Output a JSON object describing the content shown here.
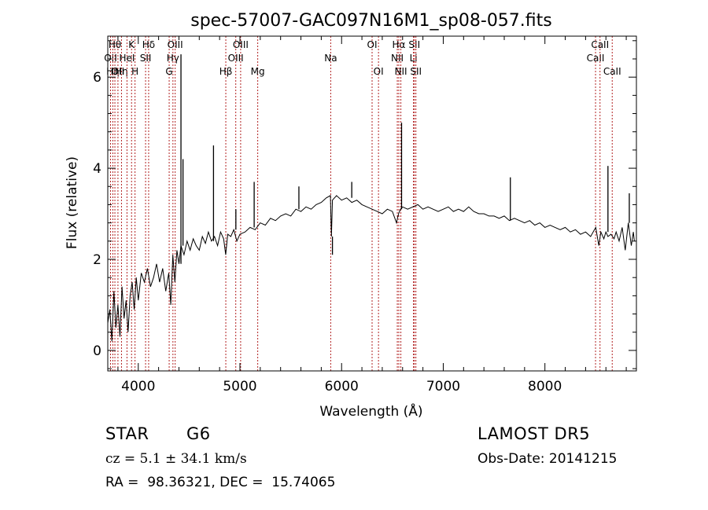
{
  "chart_data": {
    "type": "line",
    "title": "spec-57007-GAC097N16M1_sp08-057.fits",
    "xlabel": "Wavelength (Å)",
    "ylabel": "Flux (relative)",
    "xlim": [
      3700,
      8900
    ],
    "ylim": [
      -0.45,
      6.9
    ],
    "xticks": [
      4000,
      5000,
      6000,
      7000,
      8000
    ],
    "yticks": [
      0,
      2,
      4,
      6
    ],
    "grid": false,
    "series": [
      {
        "x": [
          3700,
          3720,
          3740,
          3760,
          3780,
          3800,
          3820,
          3840,
          3860,
          3880,
          3900,
          3920,
          3940,
          3960,
          3980,
          4000,
          4030,
          4060,
          4090,
          4120,
          4150,
          4180,
          4210,
          4240,
          4270,
          4300,
          4320,
          4340,
          4360,
          4380,
          4400,
          4420,
          4450,
          4480,
          4510,
          4540,
          4570,
          4600,
          4630,
          4660,
          4690,
          4720,
          4750,
          4780,
          4810,
          4840,
          4860,
          4880,
          4910,
          4940,
          4970,
          5000,
          5050,
          5100,
          5150,
          5200,
          5250,
          5300,
          5350,
          5400,
          5450,
          5500,
          5550,
          5600,
          5650,
          5700,
          5750,
          5800,
          5850,
          5890,
          5900,
          5910,
          5950,
          6000,
          6050,
          6100,
          6150,
          6200,
          6250,
          6300,
          6350,
          6400,
          6450,
          6500,
          6540,
          6560,
          6580,
          6600,
          6650,
          6700,
          6750,
          6800,
          6850,
          6900,
          6950,
          7000,
          7050,
          7100,
          7150,
          7200,
          7250,
          7300,
          7350,
          7400,
          7450,
          7500,
          7550,
          7600,
          7650,
          7700,
          7750,
          7800,
          7850,
          7900,
          7950,
          8000,
          8050,
          8100,
          8150,
          8200,
          8250,
          8300,
          8350,
          8400,
          8450,
          8500,
          8530,
          8550,
          8580,
          8600,
          8620,
          8650,
          8680,
          8700,
          8730,
          8760,
          8790,
          8820,
          8850,
          8870,
          8880
        ],
        "y": [
          0.6,
          0.9,
          0.2,
          1.3,
          0.5,
          1.0,
          0.3,
          1.4,
          0.7,
          1.1,
          0.4,
          1.2,
          1.5,
          0.9,
          1.6,
          1.1,
          1.7,
          1.5,
          1.8,
          1.4,
          1.6,
          1.9,
          1.5,
          1.8,
          1.3,
          1.7,
          1.0,
          2.1,
          1.5,
          2.2,
          1.9,
          2.3,
          2.1,
          2.4,
          2.2,
          2.45,
          2.3,
          2.2,
          2.5,
          2.35,
          2.6,
          2.4,
          2.5,
          2.3,
          2.6,
          2.45,
          2.1,
          2.55,
          2.5,
          2.65,
          2.4,
          2.55,
          2.6,
          2.7,
          2.65,
          2.8,
          2.75,
          2.9,
          2.85,
          2.95,
          3.0,
          2.95,
          3.1,
          3.05,
          3.15,
          3.1,
          3.2,
          3.25,
          3.35,
          3.4,
          2.5,
          3.3,
          3.4,
          3.3,
          3.35,
          3.25,
          3.3,
          3.2,
          3.15,
          3.1,
          3.05,
          3.0,
          3.1,
          3.05,
          2.8,
          3.0,
          3.1,
          3.15,
          3.1,
          3.15,
          3.2,
          3.1,
          3.15,
          3.1,
          3.05,
          3.1,
          3.15,
          3.05,
          3.1,
          3.05,
          3.15,
          3.05,
          3.0,
          3.0,
          2.95,
          2.95,
          2.9,
          2.95,
          2.85,
          2.9,
          2.85,
          2.8,
          2.85,
          2.75,
          2.8,
          2.7,
          2.75,
          2.7,
          2.65,
          2.7,
          2.6,
          2.65,
          2.55,
          2.6,
          2.5,
          2.7,
          2.3,
          2.6,
          2.45,
          2.6,
          2.5,
          2.55,
          2.45,
          2.6,
          2.4,
          2.7,
          2.2,
          2.8,
          2.3,
          2.6,
          2.4
        ]
      }
    ],
    "spikes": [
      {
        "x": 4420,
        "y": 6.5
      },
      {
        "x": 4440,
        "y": 4.2
      },
      {
        "x": 4740,
        "y": 4.5
      },
      {
        "x": 4960,
        "y": 3.1
      },
      {
        "x": 5140,
        "y": 3.7
      },
      {
        "x": 5580,
        "y": 3.6
      },
      {
        "x": 5910,
        "y": 2.1
      },
      {
        "x": 6100,
        "y": 3.7
      },
      {
        "x": 6590,
        "y": 5.0
      },
      {
        "x": 7660,
        "y": 3.8
      },
      {
        "x": 8620,
        "y": 4.05
      },
      {
        "x": 8830,
        "y": 3.45
      }
    ],
    "emission_lines": [
      {
        "x": 3727,
        "label": "OII",
        "row": 2
      },
      {
        "x": 3750,
        "label": "Hη",
        "row": 3
      },
      {
        "x": 3770,
        "label": "Hθ",
        "row": 1
      },
      {
        "x": 3800,
        "label": "OII",
        "row": 3
      },
      {
        "x": 3835,
        "label": "Hη",
        "row": 3
      },
      {
        "x": 3889,
        "label": "HeI",
        "row": 2
      },
      {
        "x": 3934,
        "label": "K",
        "row": 1
      },
      {
        "x": 3968,
        "label": "H",
        "row": 3
      },
      {
        "x": 4072,
        "label": "SII",
        "row": 2
      },
      {
        "x": 4102,
        "label": "Hδ",
        "row": 1
      },
      {
        "x": 4304,
        "label": "G",
        "row": 3
      },
      {
        "x": 4341,
        "label": "Hγ",
        "row": 2
      },
      {
        "x": 4363,
        "label": "OIII",
        "row": 1
      },
      {
        "x": 4861,
        "label": "Hβ",
        "row": 3
      },
      {
        "x": 4959,
        "label": "OIII",
        "row": 2
      },
      {
        "x": 5007,
        "label": "OIII",
        "row": 1
      },
      {
        "x": 5175,
        "label": "Mg",
        "row": 3
      },
      {
        "x": 5893,
        "label": "Na",
        "row": 2
      },
      {
        "x": 6300,
        "label": "OI",
        "row": 1
      },
      {
        "x": 6363,
        "label": "OI",
        "row": 3
      },
      {
        "x": 6548,
        "label": "NII",
        "row": 2
      },
      {
        "x": 6563,
        "label": "Hα",
        "row": 1
      },
      {
        "x": 6583,
        "label": "NII",
        "row": 3
      },
      {
        "x": 6707,
        "label": "Li",
        "row": 2
      },
      {
        "x": 6716,
        "label": "SII",
        "row": 1
      },
      {
        "x": 6731,
        "label": "SII",
        "row": 3
      },
      {
        "x": 8498,
        "label": "CaII",
        "row": 2
      },
      {
        "x": 8542,
        "label": "CaII",
        "row": 1
      },
      {
        "x": 8662,
        "label": "CaII",
        "row": 3
      }
    ],
    "colors": {
      "spectrum": "#000000",
      "line_marker": "#b22222",
      "axes": "#000000"
    }
  },
  "info": {
    "class_label": "STAR",
    "subclass": "G6",
    "cz": "cz = 5.1 ± 34.1 km/s",
    "coords": "RA =  98.36321, DEC =  15.74065",
    "survey": "LAMOST DR5",
    "obs_date": "Obs-Date: 20141215"
  }
}
